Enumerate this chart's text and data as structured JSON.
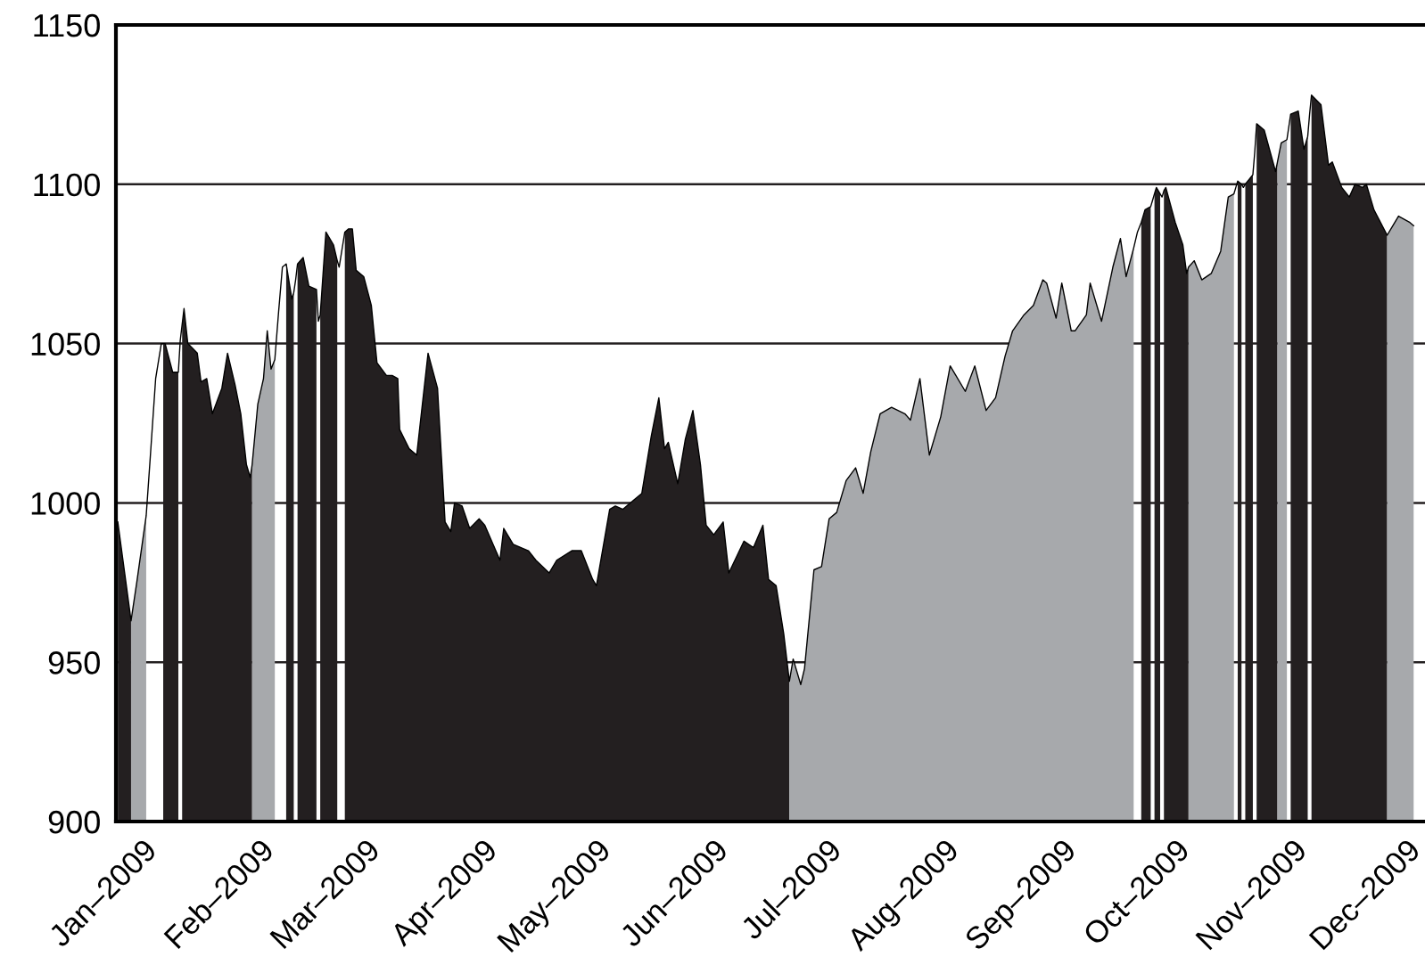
{
  "chart_data": {
    "type": "area",
    "x": [
      "2008-12-25T12:00",
      "2008-12-29",
      "2008-12-30T12:00",
      "2009-01-02",
      "2009-01-03",
      "2009-01-04T12:00",
      "2009-01-06",
      "2009-01-06T12:00",
      "2009-01-07",
      "2009-01-09",
      "2009-01-10T12:00",
      "2009-01-11",
      "2009-01-11T12:00",
      "2009-01-12",
      "2009-01-13",
      "2009-01-15T12:00",
      "2009-01-16T12:00",
      "2009-01-18",
      "2009-01-19T12:00",
      "2009-01-22",
      "2009-01-23T12:00",
      "2009-01-25T12:00",
      "2009-01-27",
      "2009-01-28T12:00",
      "2009-01-29T12:00",
      "2009-01-30",
      "2009-01-31T12:00",
      "2009-02-02",
      "2009-02-03",
      "2009-02-04",
      "2009-02-05",
      "2009-02-06",
      "2009-02-07",
      "2009-02-08",
      "2009-02-09T12:00",
      "2009-02-10",
      "2009-02-10T12:00",
      "2009-02-11",
      "2009-02-12T12:00",
      "2009-02-14",
      "2009-02-16",
      "2009-02-16T12:00",
      "2009-02-17",
      "2009-02-18T12:00",
      "2009-02-20T12:00",
      "2009-02-21T12:00",
      "2009-02-22",
      "2009-02-23T12:00",
      "2009-02-24T12:00",
      "2009-02-25T12:00",
      "2009-02-26T12:00",
      "2009-02-28T12:00",
      "2009-03-02T12:00",
      "2009-03-04",
      "2009-03-06T12:00",
      "2009-03-08",
      "2009-03-09T12:00",
      "2009-03-10",
      "2009-03-12T12:00",
      "2009-03-14T12:00",
      "2009-03-17T12:00",
      "2009-03-20",
      "2009-03-22",
      "2009-03-23T12:00",
      "2009-03-24T12:00",
      "2009-03-26T12:00",
      "2009-03-28T12:00",
      "2009-03-31",
      "2009-04-01T12:00",
      "2009-04-05T12:00",
      "2009-04-06T12:00",
      "2009-04-09",
      "2009-04-13",
      "2009-04-15",
      "2009-04-18T12:00",
      "2009-04-20T12:00",
      "2009-04-24T12:00",
      "2009-04-27",
      "2009-04-30",
      "2009-05-01",
      "2009-05-04T12:00",
      "2009-05-06",
      "2009-05-08",
      "2009-05-11",
      "2009-05-13",
      "2009-05-15T12:00",
      "2009-05-17T12:00",
      "2009-05-19",
      "2009-05-20",
      "2009-05-22T12:00",
      "2009-05-24T12:00",
      "2009-05-26T12:00",
      "2009-05-28T12:00",
      "2009-05-30",
      "2009-06-01",
      "2009-06-03T12:00",
      "2009-06-05",
      "2009-06-09",
      "2009-06-11T12:00",
      "2009-06-14",
      "2009-06-15T12:00",
      "2009-06-17T12:00",
      "2009-06-19T12:00",
      "2009-06-21",
      "2009-06-22",
      "2009-06-24",
      "2009-06-25",
      "2009-06-27T12:00",
      "2009-06-29T12:00",
      "2009-07-01T12:00",
      "2009-07-03T12:00",
      "2009-07-06",
      "2009-07-08T12:00",
      "2009-07-10T12:00",
      "2009-07-12T12:00",
      "2009-07-15",
      "2009-07-18",
      "2009-07-21T12:00",
      "2009-07-23",
      "2009-07-25T12:00",
      "2009-07-28",
      "2009-07-31",
      "2009-08-02T12:00",
      "2009-08-06T12:00",
      "2009-08-09",
      "2009-08-12",
      "2009-08-14T12:00",
      "2009-08-17",
      "2009-08-19",
      "2009-08-22",
      "2009-08-24T12:00",
      "2009-08-27",
      "2009-08-28",
      "2009-08-30T12:00",
      "2009-09-01",
      "2009-09-03T12:00",
      "2009-09-04T12:00",
      "2009-09-07T12:00",
      "2009-09-08T12:00",
      "2009-09-11T12:00",
      "2009-09-14T12:00",
      "2009-09-16T12:00",
      "2009-09-18",
      "2009-09-20",
      "2009-09-21",
      "2009-09-22",
      "2009-09-23",
      "2009-09-24T12:00",
      "2009-09-25",
      "2009-09-25T12:00",
      "2009-09-26",
      "2009-09-27",
      "2009-09-27T12:00",
      "2009-09-28",
      "2009-09-28T12:00",
      "2009-10-01",
      "2009-10-03",
      "2009-10-04",
      "2009-10-04T12:00",
      "2009-10-06",
      "2009-10-08",
      "2009-10-10T12:00",
      "2009-10-13",
      "2009-10-15",
      "2009-10-16T12:00",
      "2009-10-17",
      "2009-10-17T12:00",
      "2009-10-18T12:00",
      "2009-10-19",
      "2009-10-19T12:00",
      "2009-10-21T12:00",
      "2009-10-22",
      "2009-10-22T12:00",
      "2009-10-24T12:00",
      "2009-10-27T12:00",
      "2009-10-28",
      "2009-10-29",
      "2009-10-30T12:00",
      "2009-10-31",
      "2009-10-31T12:00",
      "2009-11-02T12:00",
      "2009-11-04",
      "2009-11-05",
      "2009-11-05T12:00",
      "2009-11-06",
      "2009-11-08T12:00",
      "2009-11-10T12:00",
      "2009-11-11T12:00",
      "2009-11-14",
      "2009-11-16",
      "2009-11-17T12:00",
      "2009-11-19T12:00",
      "2009-11-20T12:00",
      "2009-11-22T12:00",
      "2009-11-26",
      "2009-11-29",
      "2009-12-02",
      "2009-12-03"
    ],
    "series": [
      {
        "type": "line",
        "color": "#000000",
        "values": [
          994,
          963,
          975,
          996,
          1013,
          1039,
          1050,
          1050,
          1050,
          1041,
          1041,
          1051,
          1056,
          1061,
          1050,
          1047,
          1038,
          1039,
          1028,
          1036,
          1047,
          1037,
          1028,
          1012,
          1008,
          1012,
          1031,
          1039,
          1054,
          1042,
          1045,
          1060,
          1074,
          1075,
          1064,
          1066,
          1070,
          1075,
          1077,
          1068,
          1067,
          1057,
          1059,
          1085,
          1081,
          1076,
          1074,
          1085,
          1086,
          1086,
          1073,
          1071,
          1062,
          1044,
          1040,
          1040,
          1039,
          1023,
          1017,
          1015,
          1047,
          1036,
          994,
          991,
          1000,
          999,
          992,
          995,
          993,
          982,
          992,
          987,
          985,
          982,
          978,
          982,
          985,
          985,
          976,
          974,
          998,
          999,
          998,
          1001,
          1003,
          1021,
          1033,
          1017,
          1019,
          1006,
          1020,
          1029,
          1012,
          993,
          990,
          994,
          978,
          988,
          986,
          993,
          976,
          974,
          959,
          944,
          951,
          943,
          948,
          979,
          980,
          995,
          997,
          1007,
          1011,
          1003,
          1016,
          1028,
          1030,
          1028,
          1026,
          1039,
          1015,
          1027,
          1043,
          1035,
          1043,
          1029,
          1033,
          1046,
          1054,
          1059,
          1062,
          1070,
          1069,
          1058,
          1069,
          1054,
          1054,
          1059,
          1069,
          1057,
          1074,
          1083,
          1071,
          1080,
          1085,
          1088,
          1092,
          1093,
          1095,
          1097,
          1099,
          1097,
          1096,
          1098,
          1099,
          1088,
          1081,
          1072,
          1074,
          1076,
          1070,
          1072,
          1079,
          1096,
          1097,
          1099,
          1101,
          1100,
          1099,
          1100,
          1103,
          1110,
          1119,
          1117,
          1104,
          1107,
          1113,
          1114,
          1118,
          1122,
          1123,
          1111,
          1115,
          1122,
          1128,
          1125,
          1106,
          1107,
          1099,
          1096,
          1100,
          1099,
          1100,
          1092,
          1084,
          1090,
          1088,
          1087
        ]
      },
      {
        "color": "#231f20",
        "values": [
          994,
          963,
          null,
          null,
          null,
          null,
          null,
          1050,
          1050,
          1041,
          1041,
          null,
          1056,
          1061,
          1050,
          1047,
          1038,
          1039,
          1028,
          1036,
          1047,
          1037,
          1028,
          1012,
          1008,
          1012,
          null,
          null,
          null,
          null,
          null,
          null,
          null,
          1075,
          1064,
          1066,
          null,
          1075,
          1077,
          1068,
          1067,
          null,
          1059,
          1085,
          1081,
          1076,
          null,
          1085,
          1086,
          1086,
          1073,
          1071,
          1062,
          1044,
          1040,
          1040,
          1039,
          1023,
          1017,
          1015,
          1047,
          1036,
          994,
          991,
          1000,
          999,
          992,
          995,
          993,
          982,
          992,
          987,
          985,
          982,
          978,
          982,
          985,
          985,
          976,
          974,
          998,
          999,
          998,
          1001,
          1003,
          1021,
          1033,
          1017,
          1019,
          1006,
          1020,
          1029,
          1012,
          993,
          990,
          994,
          978,
          988,
          986,
          993,
          976,
          974,
          959,
          944,
          null,
          null,
          null,
          null,
          null,
          null,
          null,
          null,
          null,
          null,
          null,
          null,
          null,
          null,
          null,
          null,
          null,
          null,
          null,
          null,
          null,
          null,
          null,
          null,
          null,
          null,
          null,
          null,
          null,
          null,
          null,
          null,
          null,
          null,
          null,
          null,
          null,
          null,
          null,
          null,
          null,
          1088,
          1092,
          1093,
          null,
          1097,
          1099,
          1097,
          null,
          1098,
          1099,
          1088,
          1081,
          1072,
          1074,
          null,
          null,
          null,
          null,
          null,
          null,
          null,
          1101,
          1100,
          null,
          1100,
          1103,
          null,
          1119,
          1117,
          1104,
          1107,
          null,
          null,
          null,
          1122,
          1123,
          1111,
          1115,
          null,
          1128,
          1125,
          1106,
          1107,
          1099,
          1096,
          1100,
          1099,
          1100,
          1092,
          1084,
          null,
          null,
          null
        ]
      },
      {
        "color": "#a7a9ac",
        "values": [
          null,
          963,
          975,
          996,
          null,
          null,
          null,
          null,
          null,
          null,
          null,
          null,
          null,
          null,
          null,
          null,
          null,
          null,
          null,
          null,
          null,
          null,
          null,
          null,
          null,
          1012,
          1031,
          1039,
          1054,
          1042,
          1045,
          null,
          null,
          null,
          null,
          null,
          null,
          null,
          null,
          null,
          null,
          null,
          null,
          null,
          null,
          null,
          null,
          null,
          null,
          null,
          null,
          null,
          null,
          null,
          null,
          null,
          null,
          null,
          null,
          null,
          null,
          null,
          null,
          null,
          null,
          null,
          null,
          null,
          null,
          null,
          null,
          null,
          null,
          null,
          null,
          null,
          null,
          null,
          null,
          null,
          null,
          null,
          null,
          null,
          null,
          null,
          null,
          null,
          null,
          null,
          null,
          null,
          null,
          null,
          null,
          null,
          null,
          null,
          null,
          null,
          null,
          null,
          null,
          944,
          951,
          943,
          948,
          979,
          980,
          995,
          997,
          1007,
          1011,
          1003,
          1016,
          1028,
          1030,
          1028,
          1026,
          1039,
          1015,
          1027,
          1043,
          1035,
          1043,
          1029,
          1033,
          1046,
          1054,
          1059,
          1062,
          1070,
          1069,
          1058,
          1069,
          1054,
          1054,
          1059,
          1069,
          1057,
          1074,
          1083,
          1071,
          1080,
          null,
          null,
          null,
          null,
          null,
          null,
          null,
          null,
          null,
          null,
          null,
          null,
          null,
          null,
          1074,
          1076,
          1070,
          1072,
          1079,
          1096,
          1097,
          null,
          null,
          null,
          null,
          null,
          null,
          null,
          null,
          null,
          null,
          1107,
          1113,
          1114,
          null,
          null,
          null,
          null,
          null,
          null,
          null,
          null,
          null,
          null,
          null,
          null,
          null,
          null,
          null,
          null,
          1084,
          1090,
          1088,
          1087
        ]
      }
    ],
    "xlim": [
      "2008-12-25",
      "2009-12-06"
    ],
    "xticks": [
      {
        "value": "2009-01-01",
        "label": "Jan–2009"
      },
      {
        "value": "2009-02-01",
        "label": "Feb–2009"
      },
      {
        "value": "2009-03-01",
        "label": "Mar–2009"
      },
      {
        "value": "2009-04-01",
        "label": "Apr–2009"
      },
      {
        "value": "2009-05-01",
        "label": "May–2009"
      },
      {
        "value": "2009-06-01",
        "label": "Jun–2009"
      },
      {
        "value": "2009-07-01",
        "label": "Jul–2009"
      },
      {
        "value": "2009-08-01",
        "label": "Aug–2009"
      },
      {
        "value": "2009-09-01",
        "label": "Sep–2009"
      },
      {
        "value": "2009-10-01",
        "label": "Oct–2009"
      },
      {
        "value": "2009-11-01",
        "label": "Nov–2009"
      },
      {
        "value": "2009-12-01",
        "label": "Dec–2009"
      }
    ],
    "ylim": [
      900,
      1150
    ],
    "yticks": [
      900,
      950,
      1000,
      1050,
      1100,
      1150
    ],
    "grid": "y"
  }
}
